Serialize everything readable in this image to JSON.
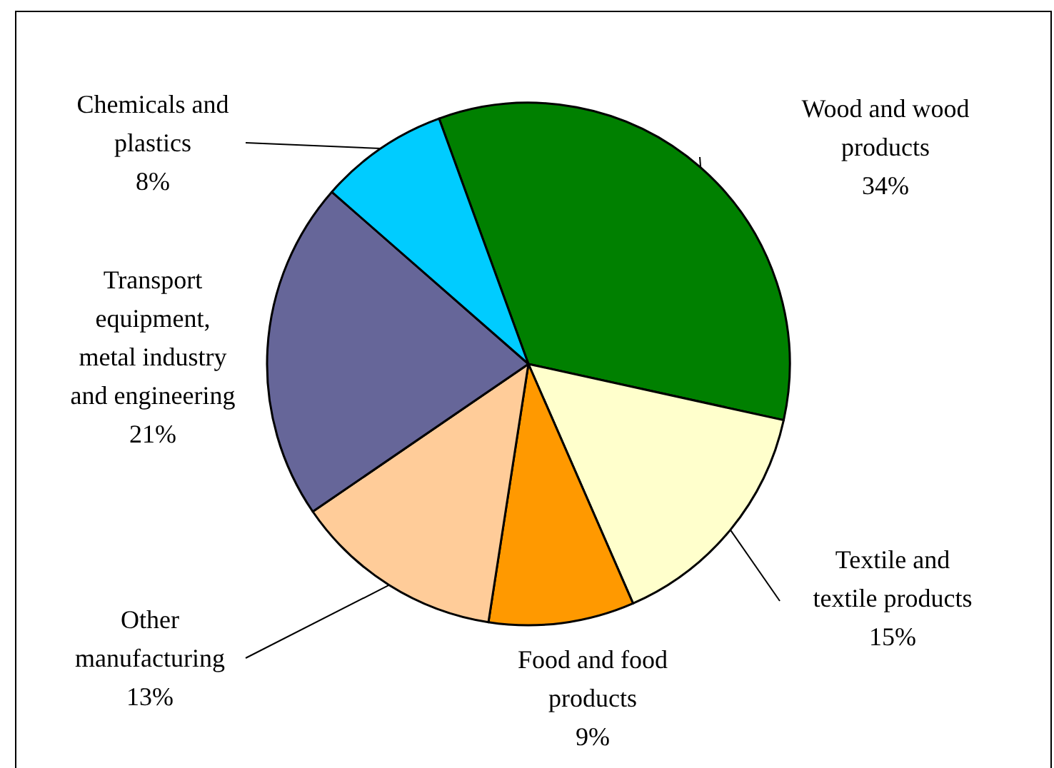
{
  "chart_data": {
    "type": "pie",
    "categories": [
      "Wood and wood products",
      "Textile and textile products",
      "Food and food products",
      "Other manufacturing",
      "Transport equipment, metal industry and engineering",
      "Chemicals and plastics"
    ],
    "values": [
      34,
      15,
      9,
      13,
      21,
      8
    ],
    "colors": [
      "#008000",
      "#ffffcc",
      "#ff9900",
      "#ffcc99",
      "#666699",
      "#00ccff"
    ],
    "value_labels": [
      "34%",
      "15%",
      "9%",
      "13%",
      "21%",
      "8%"
    ]
  }
}
